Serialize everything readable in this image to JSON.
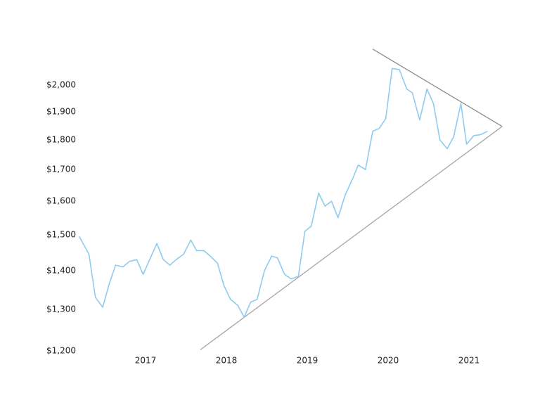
{
  "chart_data": {
    "type": "line",
    "x": [
      2016.18,
      2016.3,
      2016.38,
      2016.47,
      2016.55,
      2016.63,
      2016.72,
      2016.8,
      2016.89,
      2016.97,
      2017.05,
      2017.14,
      2017.22,
      2017.3,
      2017.38,
      2017.47,
      2017.56,
      2017.63,
      2017.72,
      2017.8,
      2017.89,
      2017.97,
      2018.05,
      2018.14,
      2018.22,
      2018.3,
      2018.38,
      2018.47,
      2018.56,
      2018.63,
      2018.72,
      2018.8,
      2018.89,
      2018.97,
      2019.05,
      2019.14,
      2019.22,
      2019.3,
      2019.38,
      2019.47,
      2019.56,
      2019.63,
      2019.72,
      2019.81,
      2019.89,
      2019.97,
      2020.05,
      2020.14,
      2020.23,
      2020.3,
      2020.39,
      2020.48,
      2020.56,
      2020.64,
      2020.73,
      2020.81,
      2020.9,
      2020.97,
      2021.06,
      2021.14,
      2021.23
    ],
    "values": [
      1495,
      1445,
      1330,
      1305,
      1365,
      1415,
      1410,
      1425,
      1430,
      1390,
      1430,
      1475,
      1430,
      1415,
      1430,
      1445,
      1485,
      1455,
      1455,
      1440,
      1420,
      1360,
      1325,
      1310,
      1280,
      1318,
      1325,
      1400,
      1440,
      1435,
      1390,
      1378,
      1385,
      1510,
      1525,
      1625,
      1585,
      1600,
      1550,
      1620,
      1670,
      1715,
      1700,
      1830,
      1840,
      1875,
      2065,
      2060,
      1985,
      1970,
      1870,
      1985,
      1930,
      1800,
      1770,
      1810,
      1930,
      1785,
      1815,
      1818,
      1830
    ],
    "color": "#8ecbef",
    "trend_lines": [
      {
        "x": [
          2019.81,
          2021.41
        ],
        "values": [
          2143,
          1847
        ],
        "color": "#8c8c8c"
      },
      {
        "x": [
          2017.68,
          2021.41
        ],
        "values": [
          1203,
          1847
        ],
        "color": "#a6a6a6"
      }
    ],
    "xlim": [
      2016.1,
      2021.5
    ],
    "xticks": [
      2017,
      2018,
      2019,
      2020,
      2021
    ],
    "ylim": [
      1200,
      2200
    ],
    "log_y": true,
    "yticks": [
      {
        "value": 1200,
        "label": "$1,200"
      },
      {
        "value": 1300,
        "label": "$1,300"
      },
      {
        "value": 1400,
        "label": "$1,400"
      },
      {
        "value": 1500,
        "label": "$1,500"
      },
      {
        "value": 1600,
        "label": "$1,600"
      },
      {
        "value": 1700,
        "label": "$1,700"
      },
      {
        "value": 1800,
        "label": "$1,800"
      },
      {
        "value": 1900,
        "label": "$1,900"
      },
      {
        "value": 2000,
        "label": "$2,000"
      }
    ],
    "grid": false
  }
}
